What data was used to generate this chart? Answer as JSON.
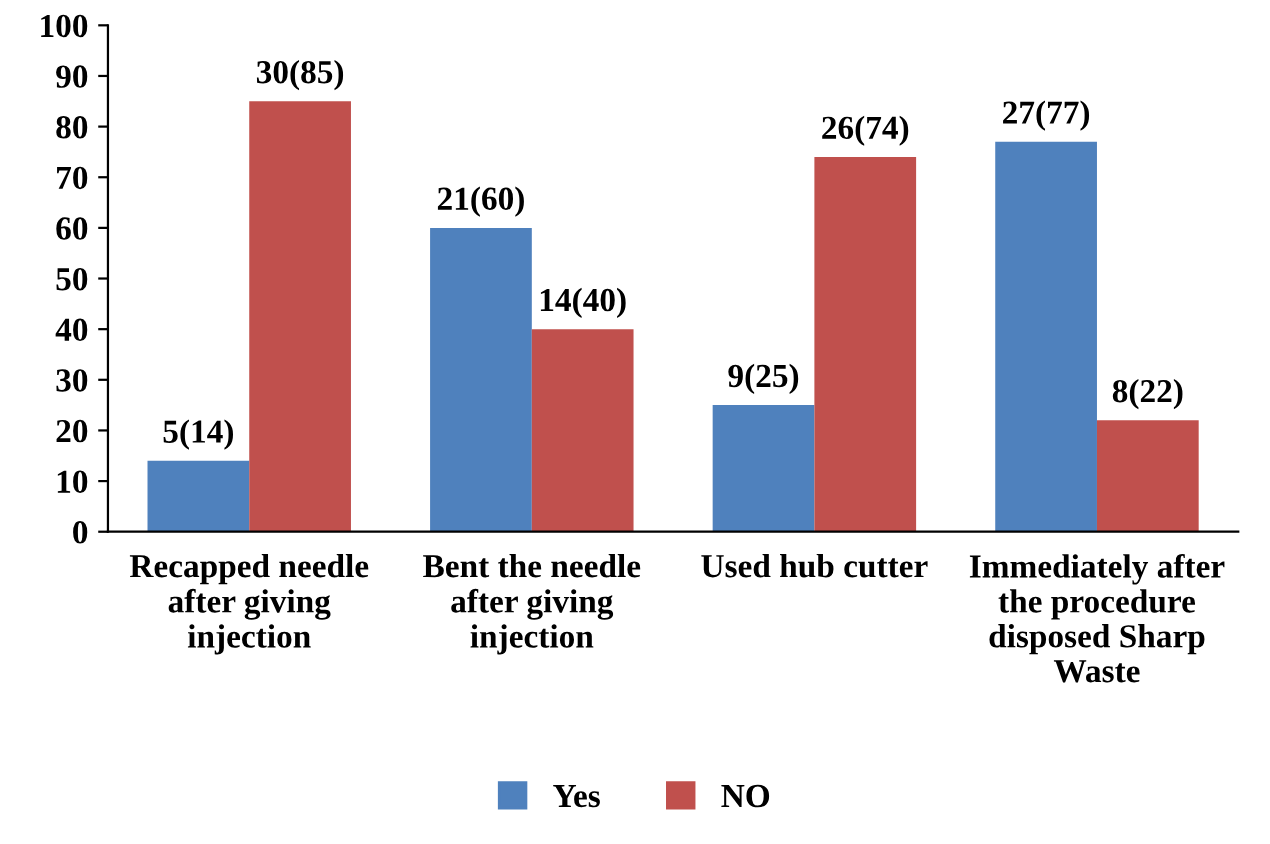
{
  "chart_data": {
    "type": "bar",
    "categories": [
      "Recapped needle\nafter giving\ninjection",
      "Bent the needle\nafter giving\ninjection",
      "Used hub cutter",
      "Immediately after\nthe procedure\ndisposed Sharp\nWaste"
    ],
    "series": [
      {
        "name": "Yes",
        "color": "#4f81bd",
        "values": [
          14,
          60,
          25,
          77
        ],
        "value_labels": [
          "5(14)",
          "21(60)",
          "9(25)",
          "27(77)"
        ]
      },
      {
        "name": "NO",
        "color": "#c0504d",
        "values": [
          85,
          40,
          74,
          22
        ],
        "value_labels": [
          "30(85)",
          "14(40)",
          "26(74)",
          "8(22)"
        ]
      }
    ],
    "ylim": [
      0,
      100
    ],
    "yticks": [
      0,
      10,
      20,
      30,
      40,
      50,
      60,
      70,
      80,
      90,
      100
    ],
    "grid": false,
    "legend": "bottom"
  }
}
